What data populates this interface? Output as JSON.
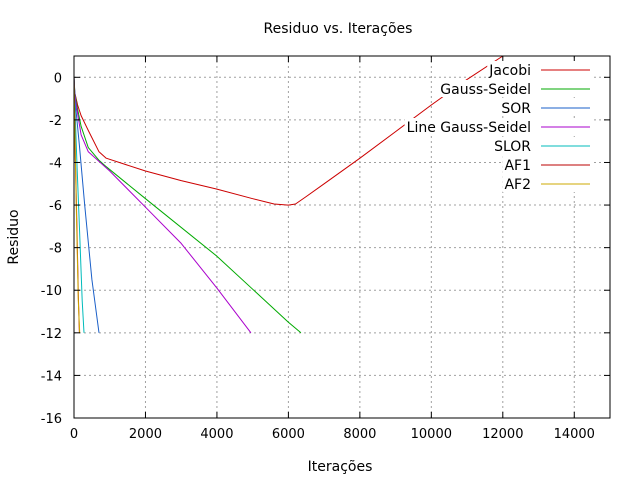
{
  "chart_data": {
    "type": "line",
    "title": "Residuo vs. Iterações",
    "xlabel": "Iterações",
    "ylabel": "Residuo",
    "xlim": [
      0,
      15000
    ],
    "ylim": [
      -16,
      1
    ],
    "xticks": [
      0,
      2000,
      4000,
      6000,
      8000,
      10000,
      12000,
      14000
    ],
    "yticks": [
      0,
      -2,
      -4,
      -6,
      -8,
      -10,
      -12,
      -14,
      -16
    ],
    "grid": true,
    "legend_position": "top-right",
    "series": [
      {
        "name": "Jacobi",
        "color": "#cc0000",
        "x": [
          0,
          20,
          100,
          200,
          400,
          700,
          900,
          2000,
          3000,
          4000,
          5000,
          5600,
          6000,
          6200,
          6500,
          7000,
          8000,
          9000,
          10000,
          11000,
          12000
        ],
        "y": [
          0,
          -0.7,
          -1.3,
          -1.8,
          -2.5,
          -3.5,
          -3.8,
          -4.4,
          -4.85,
          -5.25,
          -5.7,
          -5.95,
          -6.0,
          -5.95,
          -5.6,
          -5.0,
          -3.8,
          -2.55,
          -1.3,
          -0.1,
          1.0
        ]
      },
      {
        "name": "Gauss-Seidel",
        "color": "#00aa00",
        "x": [
          0,
          20,
          100,
          200,
          400,
          700,
          900,
          2000,
          4000,
          6000,
          6350
        ],
        "y": [
          0,
          -0.7,
          -1.5,
          -2.3,
          -3.3,
          -3.9,
          -4.2,
          -5.7,
          -8.4,
          -11.5,
          -12.0
        ]
      },
      {
        "name": "SOR",
        "color": "#1a5fc8",
        "x": [
          0,
          20,
          60,
          150,
          300,
          500,
          700
        ],
        "y": [
          0,
          -0.6,
          -1.6,
          -3.2,
          -6.0,
          -9.5,
          -12.0
        ]
      },
      {
        "name": "Line Gauss-Seidel",
        "color": "#aa00cc",
        "x": [
          0,
          20,
          100,
          200,
          400,
          1000,
          2000,
          3000,
          4000,
          4950
        ],
        "y": [
          0,
          -0.8,
          -1.7,
          -2.7,
          -3.5,
          -4.4,
          -6.1,
          -7.8,
          -9.9,
          -12.0
        ]
      },
      {
        "name": "SLOR",
        "color": "#00bbbb",
        "x": [
          0,
          10,
          40,
          80,
          150,
          230,
          280
        ],
        "y": [
          0,
          -0.7,
          -2.0,
          -4.0,
          -7.0,
          -10.5,
          -12.0
        ]
      },
      {
        "name": "AF1",
        "color": "#bb0000",
        "x": [
          0,
          10,
          40,
          80,
          120,
          150
        ],
        "y": [
          0,
          -1.0,
          -3.8,
          -7.0,
          -10.2,
          -12.0
        ]
      },
      {
        "name": "AF2",
        "color": "#ccaa00",
        "x": [
          0,
          10,
          40,
          80,
          120,
          160
        ],
        "y": [
          0,
          -1.0,
          -4.0,
          -7.5,
          -10.5,
          -12.0
        ]
      }
    ]
  }
}
